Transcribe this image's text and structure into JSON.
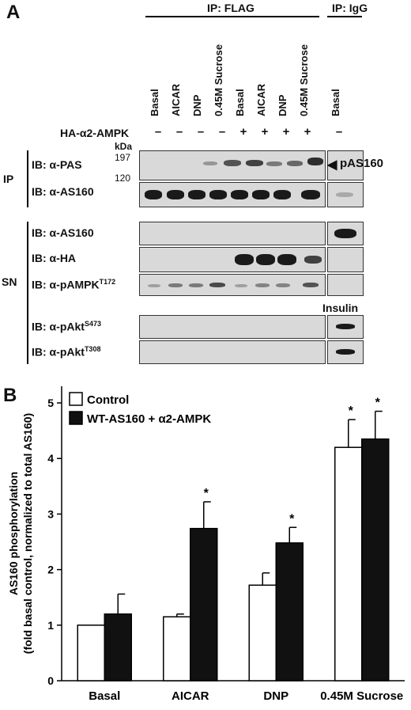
{
  "panel_a": {
    "letter": "A",
    "ip_flag_label": "IP: FLAG",
    "ip_igg_label": "IP: IgG",
    "lanes": [
      "Basal",
      "AICAR",
      "DNP",
      "0.45M Sucrose",
      "Basal",
      "AICAR",
      "DNP",
      "0.45M Sucrose",
      "Basal"
    ],
    "ha_label": "HA-α2-AMPK",
    "ha_signs": [
      "–",
      "–",
      "–",
      "–",
      "+",
      "+",
      "+",
      "+",
      "–"
    ],
    "kda_label": "kDa",
    "mw_197": "197",
    "mw_120": "120",
    "pas160_label": "pAS160",
    "insulin_label": "Insulin",
    "ip_group": "IP",
    "sn_group": "SN",
    "ib_pas": "IB: α-PAS",
    "ib_as160_ip": "IB: α-AS160",
    "ib_as160_sn": "IB: α-AS160",
    "ib_ha": "IB: α-HA",
    "ib_pampk": "IB: α-pAMPK",
    "ib_pampk_sup": "T172",
    "ib_pakt473": "IB: α-pAkt",
    "ib_pakt473_sup": "S473",
    "ib_pakt308": "IB: α-pAkt",
    "ib_pakt308_sup": "T308"
  },
  "panel_b": {
    "letter": "B"
  },
  "chart_data": {
    "type": "bar",
    "ylabel_line1": "AS160 phosphorylation",
    "ylabel_line2": "(fold basal control, normalized to total AS160)",
    "categories": [
      "Basal",
      "AICAR",
      "DNP",
      "0.45M Sucrose"
    ],
    "series": [
      {
        "name": "Control",
        "color": "#ffffff",
        "values": [
          1.0,
          1.15,
          1.72,
          4.2
        ],
        "errors": [
          0.0,
          0.05,
          0.22,
          0.5
        ],
        "significant": [
          false,
          false,
          false,
          true
        ]
      },
      {
        "name": "WT-AS160 + α2-AMPK",
        "color": "#111111",
        "values": [
          1.2,
          2.74,
          2.48,
          4.35
        ],
        "errors": [
          0.36,
          0.48,
          0.28,
          0.5
        ],
        "significant": [
          false,
          true,
          true,
          true
        ]
      }
    ],
    "yticks": [
      0,
      1,
      2,
      3,
      4,
      5
    ],
    "ylim": [
      0,
      5.3
    ],
    "marker": "*",
    "legend": "top-left"
  }
}
